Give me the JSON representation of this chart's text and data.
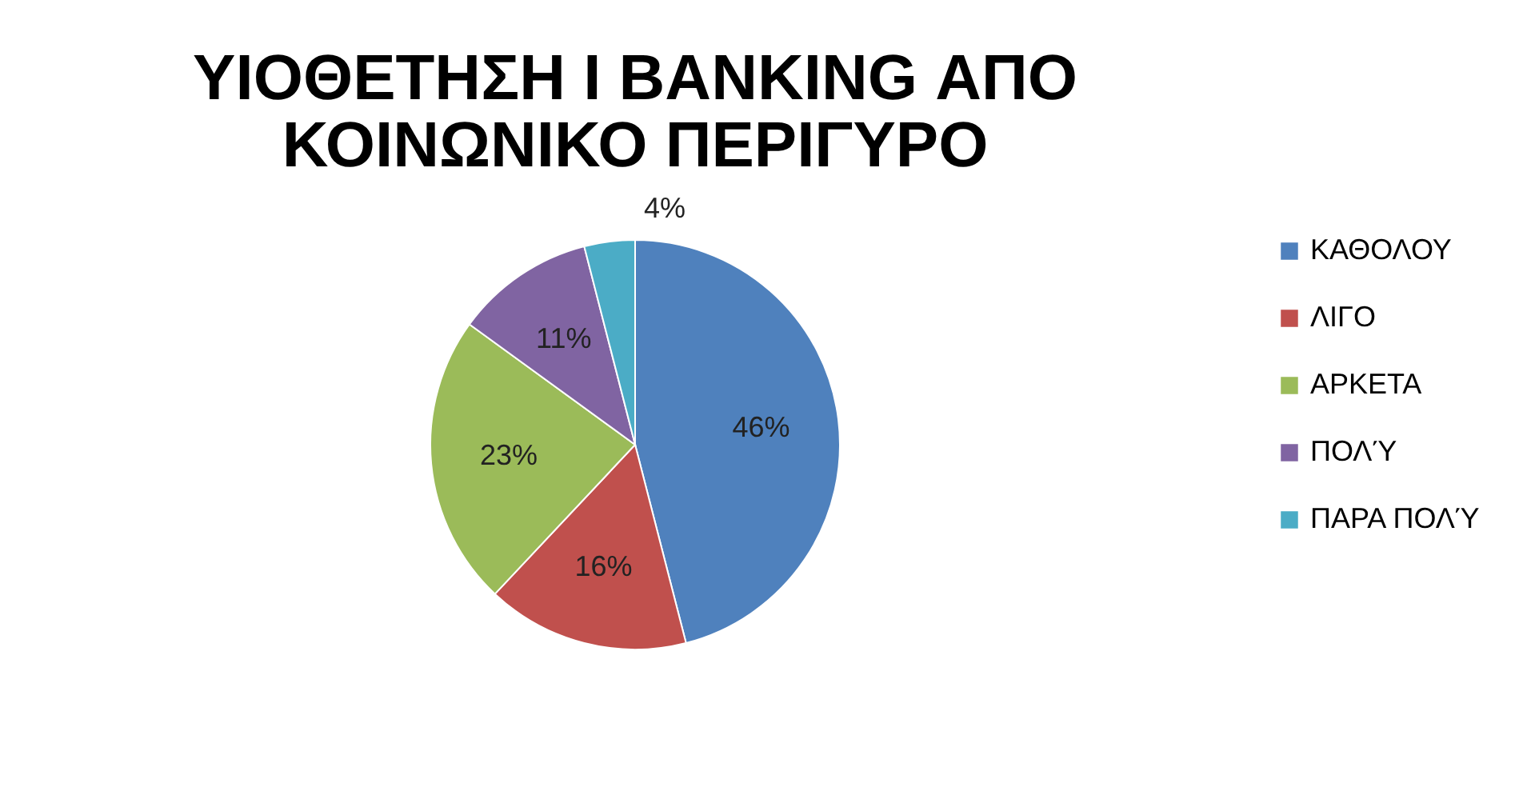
{
  "chart_data": {
    "type": "pie",
    "title": "ΥΙΟΘΕΤΗΣΗ I BANKING ΑΠΟ ΚΟΙΝΩΝΙΚΟ ΠΕΡΙΓΥΡΟ",
    "categories": [
      "ΚΑΘΟΛΟΥ",
      "ΛΙΓΟ",
      "ΑΡΚΕΤΑ",
      "ΠΟΛΎ",
      "ΠΑΡΑ ΠΟΛΎ"
    ],
    "values": [
      46,
      16,
      23,
      11,
      4
    ],
    "colors": [
      "#4f81bd",
      "#c0504d",
      "#9bbb59",
      "#8064a2",
      "#4bacc6"
    ],
    "value_labels": [
      "46%",
      "16%",
      "23%",
      "11%",
      "4%"
    ],
    "legend": "right"
  }
}
